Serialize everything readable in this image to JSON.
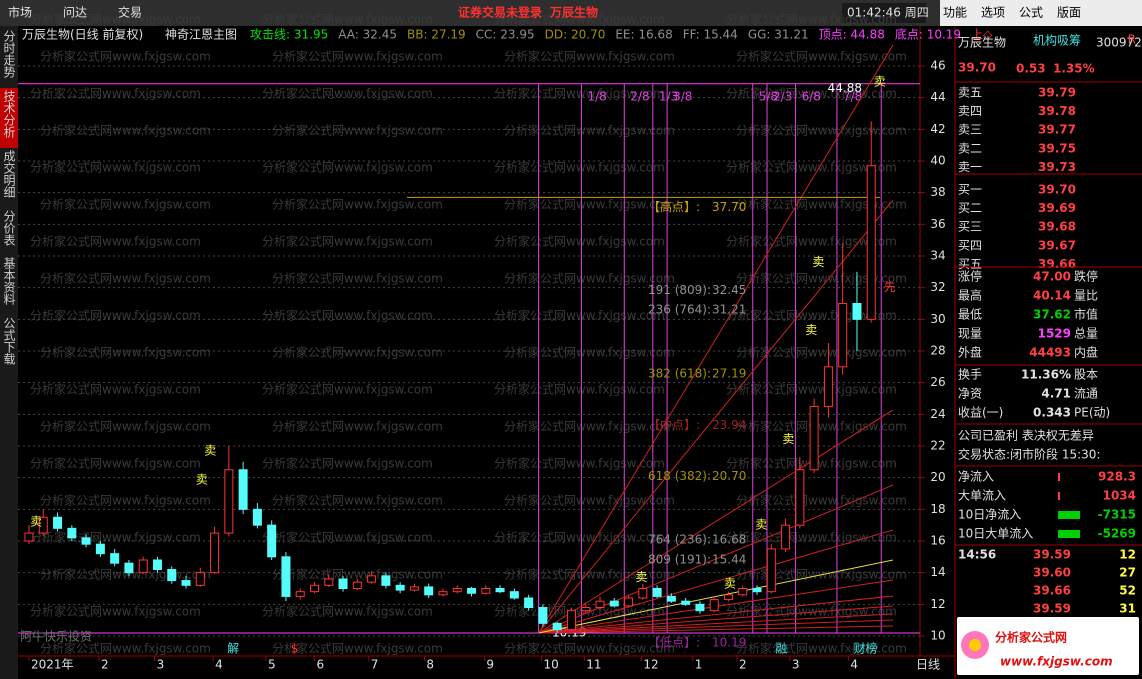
{
  "menu": [
    "市场",
    "问达",
    "交易"
  ],
  "notice": [
    "证券交易未登录",
    "万辰生物"
  ],
  "clock": "01:42:46 周四",
  "right_menu": [
    "功能",
    "选项",
    "公式",
    "版面"
  ],
  "side_tabs": [
    "分时走势",
    "技术分析",
    "成交明细",
    "分价表",
    "基本资料",
    "公式下载"
  ],
  "active_tab": 1,
  "watermark": "分析家公式网www.fxjgsw.com",
  "chart_data": {
    "type": "candlestick",
    "title": "万辰生物(日线 前复权)",
    "indicator": "神奇江恩主图",
    "legend": [
      {
        "text": "攻击线: 31.95",
        "color": "#00e000"
      },
      {
        "text": "AA: 32.45",
        "color": "#909090"
      },
      {
        "text": "BB: 27.19",
        "color": "#a09000"
      },
      {
        "text": "CC: 23.95",
        "color": "#909090"
      },
      {
        "text": "DD: 20.70",
        "color": "#a09000"
      },
      {
        "text": "EE: 16.68",
        "color": "#909090"
      },
      {
        "text": "FF: 15.44",
        "color": "#909090"
      },
      {
        "text": "GG: 31.21",
        "color": "#909090"
      },
      {
        "text": "顶点: 44.88",
        "color": "#ff40ff"
      },
      {
        "text": "底点: 10.19",
        "color": "#ff40ff"
      },
      {
        "text": "上◇",
        "color": "#ff3030"
      }
    ],
    "candles": {
      "open": [
        16.0,
        16.5,
        17.5,
        16.8,
        16.2,
        15.8,
        15.2,
        14.6,
        14.0,
        14.8,
        14.2,
        13.5,
        13.2,
        14.0,
        16.5,
        20.5,
        18.0,
        17.0,
        15.0,
        12.5,
        12.8,
        13.2,
        13.6,
        13.0,
        13.4,
        13.8,
        13.2,
        12.9,
        13.1,
        12.6,
        12.8,
        13.0,
        12.7,
        13.0,
        12.8,
        12.4,
        11.8,
        10.8,
        10.4,
        11.6,
        11.8,
        12.2,
        11.9,
        12.4,
        13.0,
        12.5,
        12.2,
        12.0,
        11.6,
        12.3,
        12.6,
        13.0,
        12.8,
        15.5,
        17.0,
        20.5,
        24.5,
        27.0,
        31.0,
        30.0
      ],
      "high": [
        17.0,
        18.0,
        17.8,
        17.0,
        16.4,
        16.0,
        15.5,
        14.8,
        15.0,
        15.0,
        14.4,
        13.8,
        14.3,
        16.9,
        22.0,
        21.0,
        18.4,
        17.3,
        15.3,
        13.0,
        13.4,
        13.9,
        13.8,
        13.6,
        14.1,
        14.0,
        13.4,
        13.3,
        13.3,
        13.0,
        13.2,
        13.1,
        13.2,
        13.2,
        13.0,
        12.6,
        12.0,
        10.9,
        11.8,
        12.1,
        12.5,
        12.4,
        12.6,
        13.3,
        13.2,
        12.7,
        12.4,
        12.2,
        12.5,
        12.8,
        13.2,
        13.2,
        15.8,
        17.4,
        21.3,
        25.0,
        28.5,
        34.8,
        33.0,
        42.5
      ],
      "low": [
        15.8,
        16.3,
        16.6,
        16.0,
        15.6,
        15.0,
        14.4,
        13.8,
        13.9,
        14.0,
        13.3,
        13.0,
        13.1,
        13.9,
        16.3,
        17.7,
        16.8,
        14.8,
        12.2,
        12.3,
        12.7,
        13.1,
        12.8,
        12.9,
        13.3,
        13.0,
        12.7,
        12.8,
        12.4,
        12.5,
        12.7,
        12.5,
        12.6,
        12.7,
        12.3,
        11.6,
        10.6,
        10.19,
        10.3,
        11.4,
        11.7,
        11.8,
        11.8,
        12.3,
        12.4,
        12.1,
        11.9,
        11.4,
        11.5,
        12.2,
        12.5,
        12.6,
        12.7,
        15.3,
        16.8,
        20.3,
        23.8,
        26.5,
        28.0,
        29.8
      ],
      "close": [
        16.5,
        17.5,
        16.8,
        16.2,
        15.8,
        15.2,
        14.6,
        14.0,
        14.8,
        14.2,
        13.5,
        13.2,
        14.0,
        16.5,
        20.5,
        18.0,
        17.0,
        15.0,
        12.5,
        12.8,
        13.2,
        13.6,
        13.0,
        13.4,
        13.8,
        13.2,
        12.9,
        13.1,
        12.6,
        12.8,
        13.0,
        12.7,
        13.0,
        12.8,
        12.4,
        11.8,
        10.8,
        10.4,
        11.6,
        11.8,
        12.2,
        11.9,
        12.4,
        13.0,
        12.5,
        12.2,
        12.0,
        11.6,
        12.3,
        12.6,
        13.0,
        12.8,
        15.5,
        17.0,
        20.5,
        24.5,
        27.0,
        31.0,
        30.0,
        39.7
      ]
    },
    "up_color": "#ff3232",
    "down_color": "#54fcfc",
    "xlim": [
      0,
      60
    ],
    "xticks": [
      {
        "value": 0,
        "label": "2021年"
      },
      {
        "value": 4.9,
        "label": "2"
      },
      {
        "value": 8.8,
        "label": "3"
      },
      {
        "value": 12.9,
        "label": "4"
      },
      {
        "value": 16.6,
        "label": "5"
      },
      {
        "value": 20,
        "label": "6"
      },
      {
        "value": 23.8,
        "label": "7"
      },
      {
        "value": 27.7,
        "label": "8"
      },
      {
        "value": 31.9,
        "label": "9"
      },
      {
        "value": 35.9,
        "label": "10"
      },
      {
        "value": 38.9,
        "label": "11"
      },
      {
        "value": 42.9,
        "label": "12"
      },
      {
        "value": 46.5,
        "label": "1"
      },
      {
        "value": 49.6,
        "label": "2"
      },
      {
        "value": 53.3,
        "label": "3"
      },
      {
        "value": 57.4,
        "label": "4"
      }
    ],
    "period_label": "日线",
    "ylim": [
      10,
      46
    ],
    "yticks": [
      10,
      12,
      14,
      16,
      18,
      20,
      22,
      24,
      26,
      28,
      30,
      32,
      34,
      36,
      38,
      40,
      42,
      44,
      46
    ],
    "grid": true,
    "top": 44.88,
    "bottom": 10.19,
    "levels": [
      {
        "name": "【高点】:",
        "value": 37.7,
        "value_label": "37.70",
        "color": "#c8a000"
      },
      {
        "name": "191 (809):",
        "value": 32.45,
        "color": "#909090"
      },
      {
        "name": "236 (764):",
        "value": 31.21,
        "color": "#909090"
      },
      {
        "name": "382 (618):",
        "value": 27.19,
        "color": "#a09000"
      },
      {
        "name": "【中点】:",
        "value": 23.94,
        "color": "#a02020"
      },
      {
        "name": "618 (382):",
        "value": 20.7,
        "value_label": "20.70",
        "color": "#a09000"
      },
      {
        "name": "764 (236):",
        "value": 16.68,
        "color": "#909090"
      },
      {
        "name": "809 (191):",
        "value": 15.44,
        "color": "#909090"
      },
      {
        "name": "【低点】:",
        "value": 10.19,
        "color": "#a020a0"
      }
    ],
    "time_lines": {
      "x": [
        35.7,
        38.7,
        41.7,
        43.7,
        44.7,
        50.7,
        51.7,
        53.7,
        56.6,
        59.7
      ],
      "labels": [
        null,
        "1/8",
        "2/8",
        "1/3",
        "3/8",
        "5/8",
        "2/3",
        "6/8",
        "7/8",
        null
      ]
    },
    "signals": [
      {
        "x": 0.5,
        "y": 17.2,
        "label": "卖"
      },
      {
        "x": 12.1,
        "y": 19.85,
        "label": "卖"
      },
      {
        "x": 12.7,
        "y": 21.7,
        "label": "卖"
      },
      {
        "x": 42.9,
        "y": 13.7,
        "label": "卖"
      },
      {
        "x": 49.1,
        "y": 13.3,
        "label": "卖"
      },
      {
        "x": 51.3,
        "y": 17.0,
        "label": "卖"
      },
      {
        "x": 53.2,
        "y": 22.4,
        "label": "卖"
      },
      {
        "x": 54.8,
        "y": 29.3,
        "label": "卖"
      },
      {
        "x": 55.3,
        "y": 33.6,
        "label": "卖"
      },
      {
        "x": 59.6,
        "y": 45.0,
        "label": "卖"
      },
      {
        "x": 60.3,
        "y": 32.0,
        "label": "先"
      }
    ],
    "events": [
      {
        "x": 14.3,
        "label": "解"
      },
      {
        "x": 18.6,
        "label": "$"
      },
      {
        "x": 52.7,
        "label": "融"
      },
      {
        "x": 58.6,
        "label": "财榜"
      }
    ],
    "footer": "阿牛快乐投资"
  },
  "quote": {
    "name": "万辰生物",
    "tag": "机构吸筹",
    "code": "300972",
    "flag": "R",
    "price": "39.70",
    "change": "0.53",
    "pct": "1.35%"
  },
  "order_book": [
    [
      "卖五",
      "39.79"
    ],
    [
      "卖四",
      "39.78"
    ],
    [
      "卖三",
      "39.77"
    ],
    [
      "卖二",
      "39.75"
    ],
    [
      "卖一",
      "39.73"
    ],
    [
      "买一",
      "39.70"
    ],
    [
      "买二",
      "39.69"
    ],
    [
      "买三",
      "39.68"
    ],
    [
      "买四",
      "39.67"
    ],
    [
      "买五",
      "39.66"
    ]
  ],
  "stats": [
    {
      "left": "涨停",
      "value": "47.00",
      "right": "跌停",
      "color": "#ff4040"
    },
    {
      "left": "最高",
      "value": "40.14",
      "right": "量比",
      "color": "#ff4040"
    },
    {
      "left": "最低",
      "value": "37.62",
      "right": "市值",
      "color": "#00d000"
    },
    {
      "left": "现量",
      "value": "1529",
      "right": "总量",
      "color": "#ff40ff"
    },
    {
      "left": "外盘",
      "value": "44493",
      "right": "内盘",
      "color": "#ff4040"
    }
  ],
  "stats2": [
    {
      "left": "换手",
      "value": "11.36%",
      "right": "股本"
    },
    {
      "left": "净资",
      "value": "4.71",
      "right": "流通"
    },
    {
      "left": "收益(一)",
      "value": "0.343",
      "right": "PE(动)"
    }
  ],
  "info": [
    "公司已盈利 表决权无差异",
    "交易状态:闭市阶段 15:30:"
  ],
  "flows": [
    {
      "name": "净流入",
      "value": "928.3",
      "color": "#ff4040"
    },
    {
      "name": "大单流入",
      "value": "1034",
      "color": "#ff4040"
    },
    {
      "name": "10日净流入",
      "value": "-7315",
      "color": "#00d000"
    },
    {
      "name": "10日大单流入",
      "value": "-5269",
      "color": "#00d000"
    }
  ],
  "ticks": {
    "time": "14:56",
    "rows": [
      [
        "39.59",
        "12"
      ],
      [
        "39.60",
        "27"
      ],
      [
        "39.66",
        "52"
      ],
      [
        "39.59",
        "31"
      ]
    ]
  },
  "logo": {
    "title": "分析家公式网",
    "url": "www.fxjgsw.com"
  }
}
